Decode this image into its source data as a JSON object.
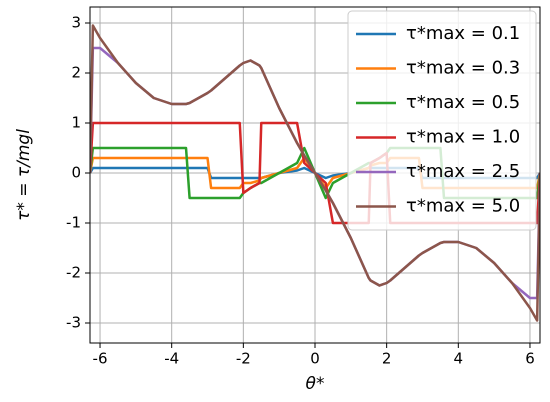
{
  "chart_data": {
    "type": "line",
    "xlabel": "θ*",
    "ylabel": "τ* = τ/mgl",
    "x": [
      -6.28,
      -6.2,
      -6,
      -5.5,
      -5,
      -4.5,
      -4,
      -3.6,
      -3.5,
      -3,
      -2.9,
      -2.5,
      -2.1,
      -2,
      -1.8,
      -1.55,
      -1.5,
      -1,
      -0.5,
      -0.3,
      0,
      0.3,
      0.5,
      1,
      1.5,
      1.55,
      1.8,
      2,
      2.1,
      2.5,
      2.9,
      3,
      3.5,
      3.6,
      4,
      4.5,
      5,
      5.5,
      6,
      6.2,
      6.28
    ],
    "series": [
      {
        "name": "τ*max = 0.1",
        "color": "#1f77b4",
        "values": [
          0,
          0.1,
          0.1,
          0.1,
          0.1,
          0.1,
          0.1,
          0.1,
          0.1,
          0.1,
          -0.1,
          -0.1,
          -0.1,
          -0.1,
          -0.1,
          -0.1,
          -0.1,
          0,
          0.05,
          0.1,
          0,
          -0.1,
          -0.05,
          0,
          0.1,
          0.1,
          0.1,
          0.1,
          0.1,
          0.1,
          0.1,
          -0.1,
          -0.1,
          -0.1,
          -0.1,
          -0.1,
          -0.1,
          -0.1,
          -0.1,
          -0.1,
          0
        ]
      },
      {
        "name": "τ*max = 0.3",
        "color": "#ff7f0e",
        "values": [
          0,
          0.3,
          0.3,
          0.3,
          0.3,
          0.3,
          0.3,
          0.3,
          0.3,
          0.3,
          -0.3,
          -0.3,
          -0.3,
          -0.2,
          -0.2,
          -0.15,
          -0.1,
          0,
          0.1,
          0.3,
          0,
          -0.3,
          -0.1,
          0,
          0.1,
          0.15,
          0.2,
          0.2,
          0.3,
          0.3,
          0.3,
          -0.3,
          -0.3,
          -0.3,
          -0.3,
          -0.3,
          -0.3,
          -0.3,
          -0.3,
          -0.3,
          0
        ]
      },
      {
        "name": "τ*max = 0.5",
        "color": "#2ca02c",
        "values": [
          0,
          0.5,
          0.5,
          0.5,
          0.5,
          0.5,
          0.5,
          0.5,
          -0.5,
          -0.5,
          -0.5,
          -0.5,
          -0.5,
          -0.4,
          -0.3,
          -0.2,
          -0.2,
          0,
          0.2,
          0.5,
          0,
          -0.5,
          -0.2,
          0,
          0.2,
          0.2,
          0.3,
          0.4,
          0.5,
          0.5,
          0.5,
          0.5,
          0.5,
          -0.5,
          -0.5,
          -0.5,
          -0.5,
          -0.5,
          -0.5,
          -0.5,
          0
        ]
      },
      {
        "name": "τ*max = 1.0",
        "color": "#d62728",
        "values": [
          0,
          1,
          1,
          1,
          1,
          1,
          1,
          1,
          1,
          1,
          1,
          1,
          1,
          -0.4,
          -0.3,
          -0.2,
          1,
          1,
          1,
          0.2,
          0,
          -0.2,
          -1,
          -1,
          -1,
          0.2,
          0.3,
          0.4,
          -1,
          -1,
          -1,
          -1,
          -1,
          -1,
          -1,
          -1,
          -1,
          -1,
          -1,
          -1,
          0
        ]
      },
      {
        "name": "τ*max = 2.5",
        "color": "#9467bd",
        "values": [
          0,
          2.5,
          2.5,
          2.2,
          1.8,
          1.5,
          1.38,
          1.38,
          1.4,
          1.6,
          1.65,
          1.9,
          2.15,
          2.2,
          2.25,
          2.15,
          2.1,
          1.3,
          0.6,
          0.35,
          0,
          -0.35,
          -0.6,
          -1.3,
          -2.1,
          -2.15,
          -2.25,
          -2.2,
          -2.15,
          -1.9,
          -1.65,
          -1.6,
          -1.4,
          -1.38,
          -1.38,
          -1.5,
          -1.8,
          -2.2,
          -2.5,
          -2.5,
          0
        ]
      },
      {
        "name": "τ*max = 5.0",
        "color": "#8c564b",
        "values": [
          0,
          2.95,
          2.7,
          2.2,
          1.8,
          1.5,
          1.38,
          1.38,
          1.4,
          1.6,
          1.65,
          1.9,
          2.15,
          2.2,
          2.25,
          2.15,
          2.1,
          1.3,
          0.6,
          0.35,
          0,
          -0.35,
          -0.6,
          -1.3,
          -2.1,
          -2.15,
          -2.25,
          -2.2,
          -2.15,
          -1.9,
          -1.65,
          -1.6,
          -1.4,
          -1.38,
          -1.38,
          -1.5,
          -1.8,
          -2.2,
          -2.7,
          -2.95,
          0
        ]
      }
    ],
    "xlim": [
      -6.28,
      6.28
    ],
    "xticks": [
      -6,
      -4,
      -2,
      0,
      2,
      4,
      6
    ],
    "ylim": [
      -3.4,
      3.32
    ],
    "yticks": [
      -3,
      -2,
      -1,
      0,
      1,
      2,
      3
    ],
    "grid": true,
    "legend": "upper right"
  }
}
